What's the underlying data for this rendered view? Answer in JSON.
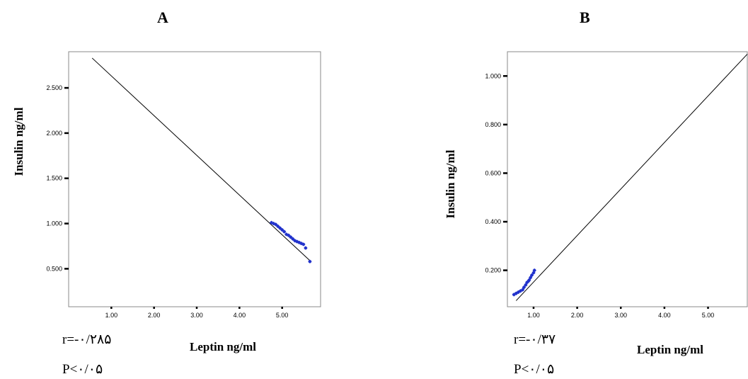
{
  "chart_data": [
    {
      "type": "scatter",
      "panel_label": "A",
      "title": "",
      "xlabel": "Leptin ng/ml",
      "ylabel": "Insulin ng/ml",
      "xlim": [
        0,
        5.9
      ],
      "ylim": [
        0.08,
        2.9
      ],
      "x_ticks": [
        {
          "value": 1.0,
          "label": "1.00"
        },
        {
          "value": 2.0,
          "label": "2.00"
        },
        {
          "value": 3.0,
          "label": "3.00"
        },
        {
          "value": 4.0,
          "label": "4.00"
        },
        {
          "value": 5.0,
          "label": "5.00"
        }
      ],
      "y_ticks": [
        {
          "value": 0.5,
          "label": "0.500"
        },
        {
          "value": 1.0,
          "label": "1.000"
        },
        {
          "value": 1.5,
          "label": "1.500"
        },
        {
          "value": 2.0,
          "label": "2.000"
        },
        {
          "value": 2.5,
          "label": "2.500"
        }
      ],
      "fit_line": {
        "x": [
          0.55,
          5.65
        ],
        "y": [
          2.83,
          0.59
        ]
      },
      "points": {
        "x": [
          4.75,
          4.8,
          4.85,
          4.9,
          4.95,
          5.0,
          5.05,
          5.1,
          5.15,
          5.2,
          5.25,
          5.3,
          5.35,
          5.4,
          5.45,
          5.5,
          5.55,
          5.65
        ],
        "y": [
          1.01,
          1.0,
          0.99,
          0.97,
          0.95,
          0.93,
          0.91,
          0.88,
          0.87,
          0.85,
          0.83,
          0.81,
          0.8,
          0.79,
          0.78,
          0.77,
          0.73,
          0.58
        ]
      },
      "annotations": {
        "r": "r=-۰/۲۸۵",
        "p": "P<۰/۰۵"
      },
      "grid": false,
      "colors": {
        "points": "#2233cc",
        "line": "#000000"
      }
    },
    {
      "type": "scatter",
      "panel_label": "B",
      "title": "",
      "xlabel": "Leptin ng/ml",
      "ylabel": "Insulin ng/ml",
      "xlim": [
        0.4,
        5.9
      ],
      "ylim": [
        0.05,
        1.1
      ],
      "x_ticks": [
        {
          "value": 1.0,
          "label": "1.00"
        },
        {
          "value": 2.0,
          "label": "2.00"
        },
        {
          "value": 3.0,
          "label": "3.00"
        },
        {
          "value": 4.0,
          "label": "4.00"
        },
        {
          "value": 5.0,
          "label": "5.00"
        }
      ],
      "y_ticks": [
        {
          "value": 0.2,
          "label": "0.200"
        },
        {
          "value": 0.4,
          "label": "0.400"
        },
        {
          "value": 0.6,
          "label": "0.600"
        },
        {
          "value": 0.8,
          "label": "0.800"
        },
        {
          "value": 1.0,
          "label": "1.000"
        }
      ],
      "fit_line": {
        "x": [
          0.6,
          5.9
        ],
        "y": [
          0.075,
          1.09
        ]
      },
      "points": {
        "x": [
          0.55,
          0.6,
          0.65,
          0.7,
          0.75,
          0.78,
          0.82,
          0.85,
          0.88,
          0.9,
          0.93,
          0.96,
          1.0,
          1.02
        ],
        "y": [
          0.1,
          0.105,
          0.11,
          0.115,
          0.12,
          0.13,
          0.14,
          0.15,
          0.155,
          0.16,
          0.17,
          0.18,
          0.19,
          0.2
        ]
      },
      "annotations": {
        "r": "r=-۰/۳۷",
        "p": "P<۰/۰۵"
      },
      "grid": false,
      "colors": {
        "points": "#2233cc",
        "line": "#000000"
      }
    }
  ]
}
